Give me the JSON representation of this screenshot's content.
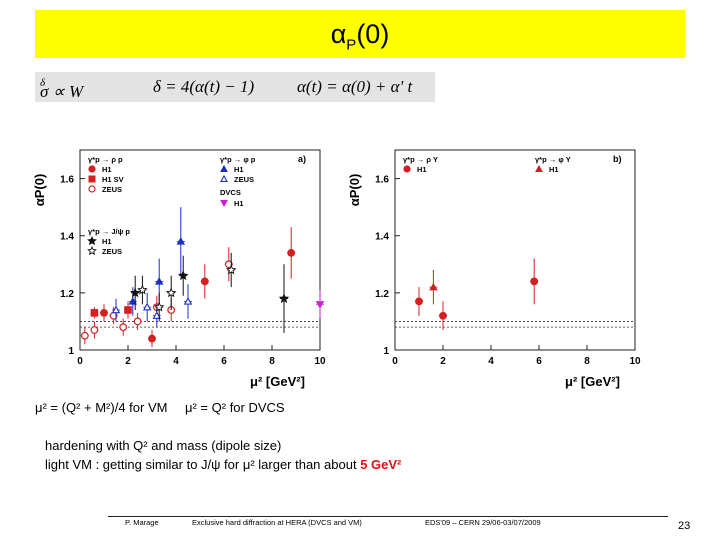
{
  "slide": {
    "title_alpha": "α",
    "title_sub": "P",
    "title_rest": "(0)",
    "formula_1": "σ ∝ W",
    "formula_1_sup": "δ",
    "formula_2": "δ = 4(α(t) − 1)",
    "formula_3": "α(t) = α(0) + α' t",
    "note_mu_vm": "μ² = (Q² + M²)/4 for VM",
    "note_mu_dvcs": "μ² = Q² for DVCS",
    "note_line1": "hardening with Q² and mass (dipole size)",
    "note_line2_pre": "light VM : getting similar to J/ψ for μ² larger than about",
    "note_line2_hi": "5 GeV²",
    "footer_author": "P. Marage",
    "footer_talk": "Exclusive hard diffraction at HERA (DVCS and VM)",
    "footer_conf": "EDS'09 – CERN 29/06-03/07/2009",
    "page_number": "23"
  },
  "chart_data": [
    {
      "type": "scatter",
      "panel_label": "a)",
      "ylabel": "αP(0)",
      "xlabel": "μ² [GeV²]",
      "xlim": [
        0,
        10
      ],
      "ylim": [
        1,
        1.7
      ],
      "xticks": [
        0,
        2,
        4,
        6,
        8,
        10
      ],
      "yticks": [
        1,
        1.2,
        1.4,
        1.6
      ],
      "band_lines": [
        1.08,
        1.1
      ],
      "legend": {
        "rho": "γ*p → ρ p",
        "phi": "γ*p → φ p",
        "jpsi": "γ*p → J/ψ p",
        "dvcs": "DVCS",
        "entries": [
          {
            "label": "H1",
            "color": "#d42020",
            "marker": "circle"
          },
          {
            "label": "H1 SV",
            "color": "#d42020",
            "marker": "square"
          },
          {
            "label": "ZEUS",
            "color": "#d42020",
            "marker": "circle-open"
          },
          {
            "label": "H1",
            "color": "#1a30c0",
            "marker": "triangle"
          },
          {
            "label": "ZEUS",
            "color": "#1a30c0",
            "marker": "triangle-open"
          },
          {
            "label": "H1",
            "color": "#111111",
            "marker": "star"
          },
          {
            "label": "ZEUS",
            "color": "#111111",
            "marker": "star-open"
          },
          {
            "label": "H1",
            "color": "#d020d0",
            "marker": "triangle-down"
          }
        ]
      },
      "series": [
        {
          "name": "ρ H1",
          "marker": "circle",
          "color": "#d42020",
          "points": [
            {
              "x": 1.0,
              "y": 1.13,
              "err": 0.03
            },
            {
              "x": 3.0,
              "y": 1.04,
              "err": 0.03
            },
            {
              "x": 5.2,
              "y": 1.24,
              "err": 0.06
            },
            {
              "x": 8.8,
              "y": 1.34,
              "err": 0.09
            }
          ]
        },
        {
          "name": "ρ H1 SV",
          "marker": "square",
          "color": "#d42020",
          "points": [
            {
              "x": 0.6,
              "y": 1.13,
              "err": 0.02
            },
            {
              "x": 2.0,
              "y": 1.14,
              "err": 0.03
            }
          ]
        },
        {
          "name": "ρ ZEUS",
          "marker": "circle-open",
          "color": "#d42020",
          "points": [
            {
              "x": 0.2,
              "y": 1.05,
              "err": 0.03
            },
            {
              "x": 0.6,
              "y": 1.07,
              "err": 0.03
            },
            {
              "x": 1.4,
              "y": 1.12,
              "err": 0.03
            },
            {
              "x": 1.8,
              "y": 1.08,
              "err": 0.03
            },
            {
              "x": 2.4,
              "y": 1.1,
              "err": 0.03
            },
            {
              "x": 3.2,
              "y": 1.15,
              "err": 0.04
            },
            {
              "x": 3.8,
              "y": 1.14,
              "err": 0.04
            },
            {
              "x": 6.2,
              "y": 1.3,
              "err": 0.06
            }
          ]
        },
        {
          "name": "φ H1",
          "marker": "triangle",
          "color": "#1a30c0",
          "points": [
            {
              "x": 2.2,
              "y": 1.17,
              "err": 0.05
            },
            {
              "x": 3.3,
              "y": 1.24,
              "err": 0.08
            },
            {
              "x": 4.2,
              "y": 1.38,
              "err": 0.12
            }
          ]
        },
        {
          "name": "φ ZEUS",
          "marker": "triangle-open",
          "color": "#1a30c0",
          "points": [
            {
              "x": 1.5,
              "y": 1.14,
              "err": 0.04
            },
            {
              "x": 2.8,
              "y": 1.15,
              "err": 0.05
            },
            {
              "x": 3.2,
              "y": 1.12,
              "err": 0.04
            },
            {
              "x": 4.5,
              "y": 1.17,
              "err": 0.06
            }
          ]
        },
        {
          "name": "J/ψ H1",
          "marker": "star",
          "color": "#111111",
          "points": [
            {
              "x": 2.3,
              "y": 1.2,
              "err": 0.06
            },
            {
              "x": 4.3,
              "y": 1.26,
              "err": 0.07
            },
            {
              "x": 8.5,
              "y": 1.18,
              "err": 0.12
            }
          ]
        },
        {
          "name": "J/ψ ZEUS",
          "marker": "star-open",
          "color": "#111111",
          "points": [
            {
              "x": 2.6,
              "y": 1.21,
              "err": 0.05
            },
            {
              "x": 3.3,
              "y": 1.15,
              "err": 0.05
            },
            {
              "x": 3.8,
              "y": 1.2,
              "err": 0.06
            },
            {
              "x": 6.3,
              "y": 1.28,
              "err": 0.06
            }
          ]
        },
        {
          "name": "DVCS H1",
          "marker": "triangle-down",
          "color": "#d020d0",
          "points": [
            {
              "x": 10.0,
              "y": 1.16,
              "err": 0.05
            }
          ]
        }
      ]
    },
    {
      "type": "scatter",
      "panel_label": "b)",
      "ylabel": "αP(0)",
      "xlabel": "μ² [GeV²]",
      "xlim": [
        0,
        10
      ],
      "ylim": [
        1,
        1.7
      ],
      "xticks": [
        0,
        2,
        4,
        6,
        8,
        10
      ],
      "yticks": [
        1,
        1.2,
        1.4,
        1.6
      ],
      "band_lines": [
        1.08,
        1.1
      ],
      "legend": {
        "rho": "γ*p → ρ Y",
        "phi": "γ*p → φ Y",
        "entries": [
          {
            "label": "H1",
            "color": "#d42020",
            "marker": "circle"
          },
          {
            "label": "H1",
            "color": "#d42020",
            "marker": "triangle"
          }
        ]
      },
      "series": [
        {
          "name": "ρ Y H1",
          "marker": "circle",
          "color": "#d42020",
          "points": [
            {
              "x": 1.0,
              "y": 1.17,
              "err": 0.05
            },
            {
              "x": 2.0,
              "y": 1.12,
              "err": 0.05
            },
            {
              "x": 5.8,
              "y": 1.24,
              "err": 0.08
            }
          ]
        },
        {
          "name": "φ Y H1",
          "marker": "triangle",
          "color": "#d42020",
          "points": [
            {
              "x": 1.6,
              "y": 1.22,
              "err": 0.06
            }
          ]
        }
      ]
    }
  ]
}
